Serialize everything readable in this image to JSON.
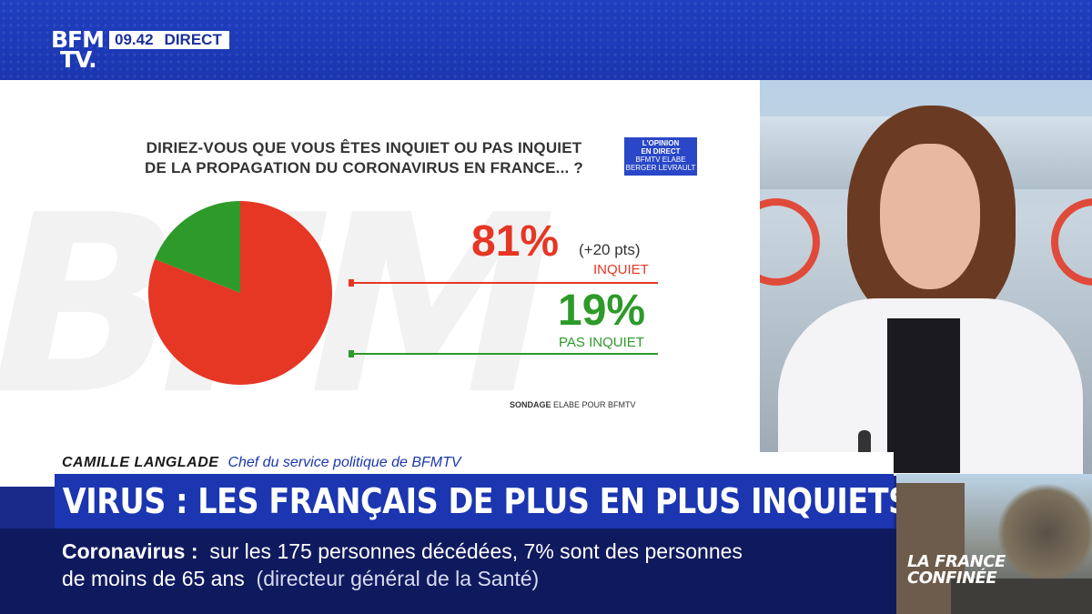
{
  "channel": {
    "logo_line1": "BFM",
    "logo_line2": "TV.",
    "time": "09.42",
    "live_label": "DIRECT"
  },
  "poll": {
    "question_line1": "DIRIEZ-VOUS QUE VOUS ÊTES INQUIET OU PAS INQUIET",
    "question_line2": "DE LA PROPAGATION DU CORONAVIRUS EN FRANCE... ?",
    "badge_line1": "L'OPINION",
    "badge_line2": "EN DIRECT",
    "badge_line3": "BFMTV ELABE",
    "badge_line4": "BERGER LEVRAULT",
    "inquiet_value": "81%",
    "inquiet_change": "(+20 pts)",
    "inquiet_label": "INQUIET",
    "pas_inquiet_value": "19%",
    "pas_inquiet_label": "PAS INQUIET",
    "source_bold": "SONDAGE",
    "source_rest": "ELABE POUR BFMTV",
    "colors": {
      "inquiet": "#e63624",
      "pas_inquiet": "#2d9a2a"
    }
  },
  "chart_data": {
    "type": "pie",
    "categories": [
      "INQUIET",
      "PAS INQUIET"
    ],
    "values": [
      81,
      19
    ],
    "colors": [
      "#e63624",
      "#2d9a2a"
    ]
  },
  "lower_third": {
    "name": "CAMILLE LANGLADE",
    "role": "Chef du service politique de BFMTV",
    "headline": "VIRUS : LES FRANÇAIS DE PLUS EN PLUS INQUIETS"
  },
  "ticker": {
    "keyword": "Coronavirus :",
    "line1_rest": "sur les 175 personnes décédées, 7% sont des personnes",
    "line2_main": "de moins de 65 ans",
    "line2_source": "(directeur général de la Santé)"
  },
  "thumbnail": {
    "caption_line1": "LA FRANCE",
    "caption_line2": "CONFINÉE"
  }
}
